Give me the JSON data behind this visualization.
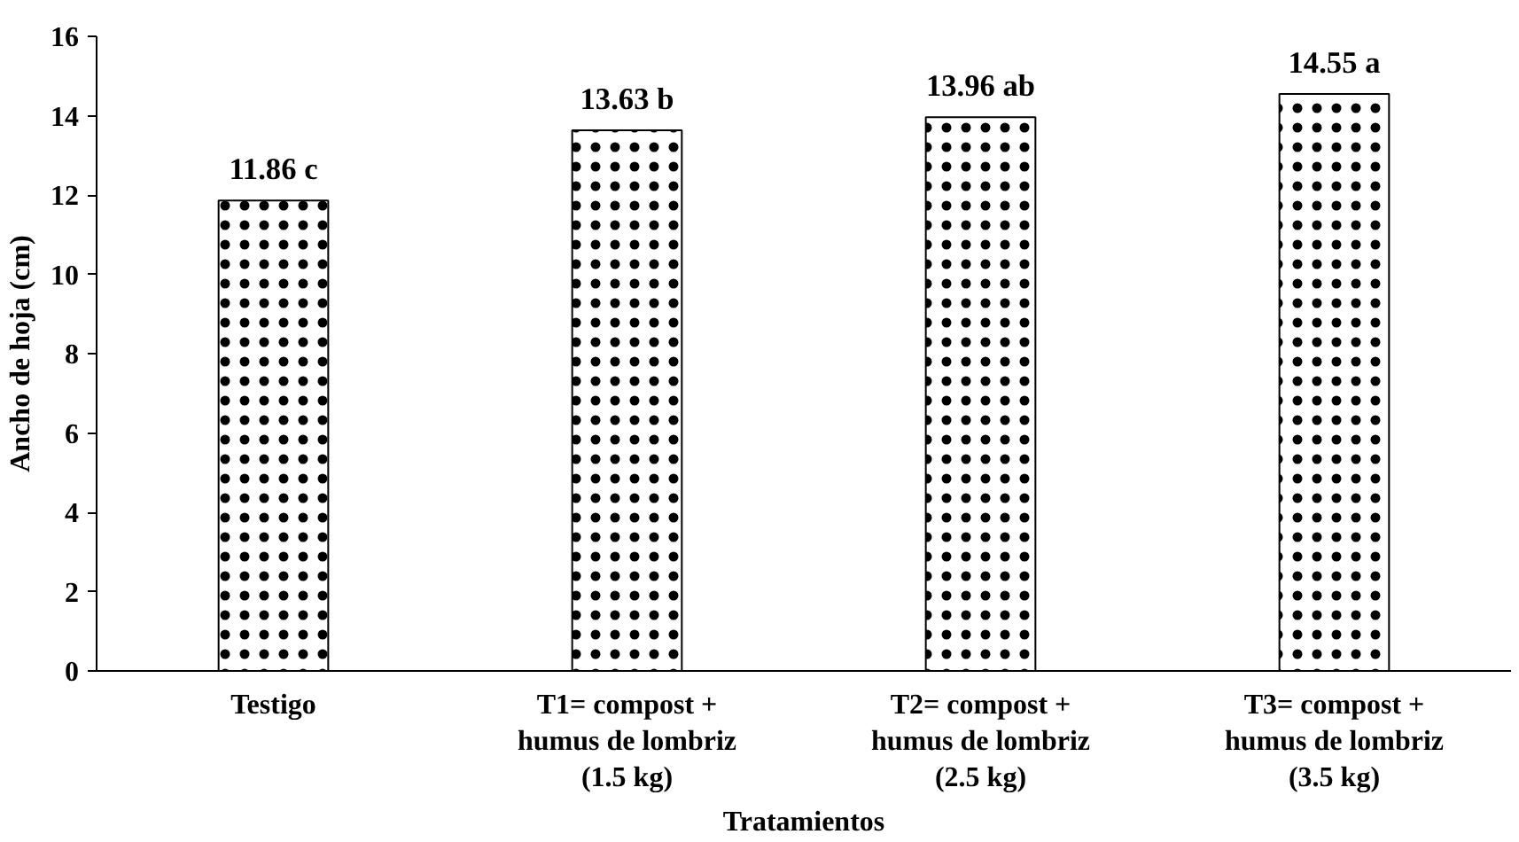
{
  "chart_data": {
    "type": "bar",
    "xlabel": "Tratamientos",
    "ylabel": "Ancho de hoja (cm)",
    "categories": [
      "Testigo",
      "T1= compost +\nhumus de lombriz\n(1.5 kg)",
      "T2= compost +\nhumus de lombriz\n(2.5 kg)",
      "T3= compost +\nhumus de lombriz\n(3.5 kg)"
    ],
    "values": [
      11.86,
      13.63,
      13.96,
      14.55
    ],
    "value_labels": [
      "11.86 c",
      "13.63 b",
      "13.96 ab",
      "14.55 a"
    ],
    "color": "#ffffff",
    "ylim": [
      0,
      16
    ],
    "yticks": [
      0,
      2,
      4,
      6,
      8,
      10,
      12,
      14,
      16
    ],
    "grid": false
  }
}
